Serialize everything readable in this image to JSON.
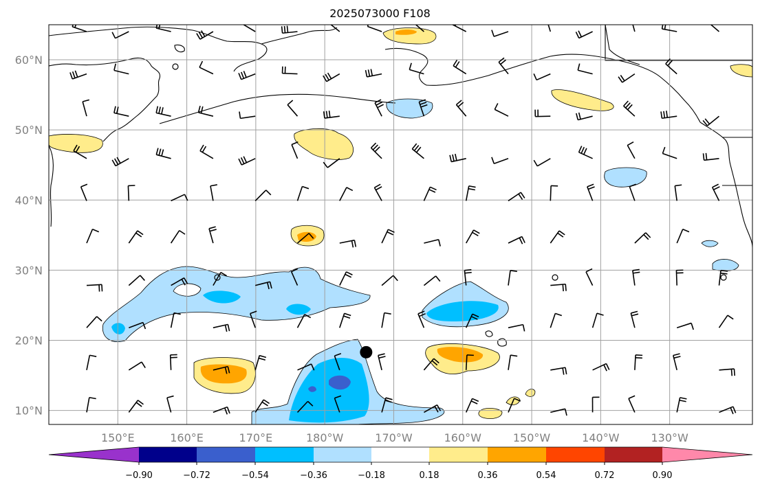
{
  "title": "2025073000 F108",
  "lat_labels": [
    {
      "deg": 60,
      "text": "60°N"
    },
    {
      "deg": 50,
      "text": "50°N"
    },
    {
      "deg": 40,
      "text": "40°N"
    },
    {
      "deg": 30,
      "text": "30°N"
    },
    {
      "deg": 20,
      "text": "20°N"
    },
    {
      "deg": 10,
      "text": "10°N"
    }
  ],
  "lon_labels": [
    {
      "deg": 150,
      "text": "150°E"
    },
    {
      "deg": 160,
      "text": "160°E"
    },
    {
      "deg": 170,
      "text": "170°E"
    },
    {
      "deg": 180,
      "text": "180°W"
    },
    {
      "deg": 190,
      "text": "170°W"
    },
    {
      "deg": 200,
      "text": "160°W"
    },
    {
      "deg": 210,
      "text": "150°W"
    },
    {
      "deg": 220,
      "text": "140°W"
    },
    {
      "deg": 230,
      "text": "130°W"
    }
  ],
  "map_extent": {
    "lon_min": 140,
    "lon_max": 242,
    "lat_min": 8,
    "lat_max": 65
  },
  "colorbar": {
    "colors": [
      "#9932cc",
      "#00008b",
      "#3a5fcd",
      "#00bfff",
      "#b0e0ff",
      "#ffffff",
      "#ffec8b",
      "#ffa500",
      "#ff4500",
      "#b22222",
      "#ff88aa"
    ],
    "ticks": [
      "−0.90",
      "−0.72",
      "−0.54",
      "−0.36",
      "−0.18",
      "0.18",
      "0.36",
      "0.54",
      "0.72",
      "0.90"
    ]
  },
  "marker": {
    "lon": 186,
    "lat": 18.3
  }
}
